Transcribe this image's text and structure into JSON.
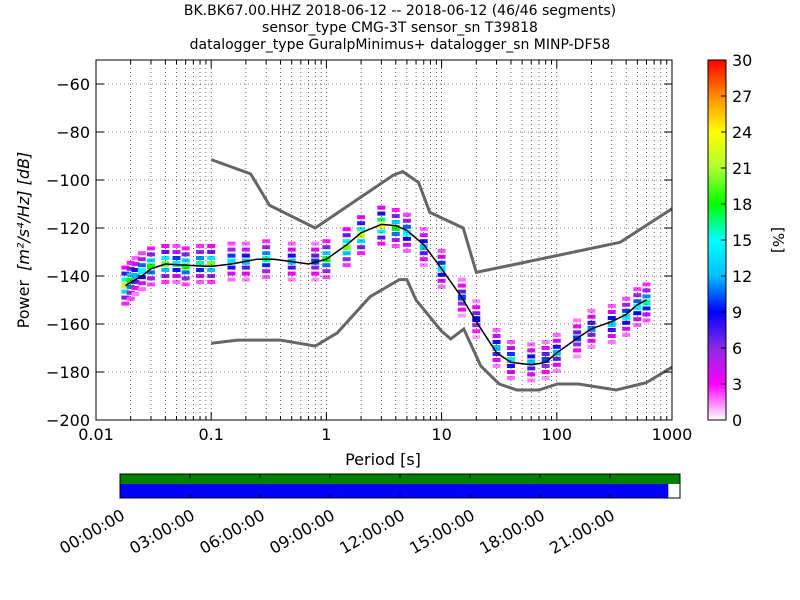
{
  "title_lines": [
    "BK.BK67.00.HHZ   2018-06-12 -- 2018-06-12  (46/46 segments)",
    "sensor_type CMG-3T sensor_sn T39818",
    "datalogger_type GuralpMinimus+ datalogger_sn MINP-DF58"
  ],
  "chart_data": [
    {
      "type": "heatmap",
      "title": "BK.BK67.00.HHZ   2018-06-12 -- 2018-06-12  (46/46 segments)",
      "xlabel": "Period [s]",
      "ylabel_main": "Power",
      "ylabel_units": "[m²/s⁴/Hz] [dB]",
      "xscale": "log",
      "xlim": [
        0.01,
        1000
      ],
      "ylim": [
        -200,
        -50
      ],
      "x_ticks": [
        0.01,
        0.1,
        1,
        10,
        100,
        1000
      ],
      "x_tick_labels": [
        "0.01",
        "0.1",
        "1",
        "10",
        "100",
        "1000"
      ],
      "y_ticks": [
        -200,
        -180,
        -160,
        -140,
        -120,
        -100,
        -80,
        -60
      ],
      "y_tick_labels": [
        "−200",
        "−180",
        "−160",
        "−140",
        "−120",
        "−100",
        "−80",
        "−60"
      ],
      "grid": true,
      "noise_model_high": {
        "x": [
          0.1,
          0.22,
          0.32,
          0.8,
          3.8,
          4.6,
          6.3,
          7.9,
          15.4,
          20,
          354,
          1000
        ],
        "y": [
          -91.5,
          -97.4,
          -110.5,
          -120,
          -98,
          -96.5,
          -101,
          -113.5,
          -120,
          -138.5,
          -126,
          -112
        ]
      },
      "noise_model_low": {
        "x": [
          0.1,
          0.17,
          0.4,
          0.8,
          1.24,
          2.4,
          4.3,
          5,
          6,
          10,
          12,
          15.6,
          21.9,
          31.6,
          45,
          70,
          101,
          154,
          328,
          600,
          1000
        ],
        "y": [
          -168,
          -166.7,
          -166.7,
          -169.2,
          -163.7,
          -148.6,
          -141.5,
          -141.5,
          -150,
          -163,
          -166.2,
          -162.1,
          -177.5,
          -185,
          -187.5,
          -187.5,
          -185,
          -185,
          -187.5,
          -184.4,
          -178
        ]
      },
      "mean_curve": {
        "x": [
          0.018,
          0.025,
          0.03,
          0.04,
          0.06,
          0.1,
          0.15,
          0.25,
          0.35,
          0.5,
          0.7,
          1,
          1.5,
          2,
          3,
          4,
          5,
          7,
          10,
          15,
          20,
          30,
          40,
          60,
          80,
          100,
          150,
          200,
          300,
          400,
          500,
          600
        ],
        "y": [
          -144,
          -140,
          -137,
          -135,
          -135.5,
          -136,
          -135,
          -133,
          -133,
          -134,
          -135,
          -133,
          -127,
          -122,
          -118.5,
          -119,
          -121,
          -127,
          -137,
          -149,
          -159,
          -172,
          -176,
          -177,
          -176,
          -172,
          -166,
          -162,
          -159,
          -156,
          -152,
          -150
        ]
      },
      "density_points": [
        [
          0.018,
          -144,
          22
        ],
        [
          0.02,
          -142,
          18
        ],
        [
          0.022,
          -140,
          12
        ],
        [
          0.025,
          -138,
          15
        ],
        [
          0.03,
          -136,
          18
        ],
        [
          0.04,
          -135,
          20
        ],
        [
          0.05,
          -135,
          14
        ],
        [
          0.06,
          -136,
          18
        ],
        [
          0.08,
          -135,
          16
        ],
        [
          0.1,
          -135,
          20
        ],
        [
          0.15,
          -134,
          14
        ],
        [
          0.2,
          -134,
          12
        ],
        [
          0.3,
          -133,
          16
        ],
        [
          0.5,
          -134,
          12
        ],
        [
          0.8,
          -134,
          10
        ],
        [
          1,
          -133,
          18
        ],
        [
          1.5,
          -128,
          20
        ],
        [
          2,
          -123,
          22
        ],
        [
          3,
          -119,
          24
        ],
        [
          4,
          -120,
          18
        ],
        [
          5,
          -122,
          15
        ],
        [
          7,
          -128,
          12
        ],
        [
          10,
          -137,
          14
        ],
        [
          15,
          -149,
          10
        ],
        [
          20,
          -158,
          9
        ],
        [
          30,
          -170,
          12
        ],
        [
          40,
          -175,
          14
        ],
        [
          60,
          -176,
          12
        ],
        [
          80,
          -175,
          10
        ],
        [
          100,
          -172,
          12
        ],
        [
          150,
          -166,
          10
        ],
        [
          200,
          -162,
          11
        ],
        [
          300,
          -160,
          13
        ],
        [
          400,
          -157,
          14
        ],
        [
          500,
          -153,
          15
        ],
        [
          600,
          -151,
          16
        ]
      ],
      "colorbar": {
        "label": "[%]",
        "min": 0,
        "max": 30,
        "ticks": [
          0,
          3,
          6,
          9,
          12,
          15,
          18,
          21,
          24,
          27,
          30
        ],
        "colormap": "pqlx"
      }
    },
    {
      "type": "timeline",
      "x_tick_labels": [
        "00:00:00",
        "03:00:00",
        "06:00:00",
        "09:00:00",
        "12:00:00",
        "15:00:00",
        "18:00:00",
        "21:00:00"
      ],
      "x_ticks_hours": [
        0,
        3,
        6,
        9,
        12,
        15,
        18,
        21
      ],
      "xlim_hours": [
        0,
        24
      ],
      "rows": [
        {
          "color": "#008000",
          "start_hour": 0,
          "end_hour": 24
        },
        {
          "color": "#0000ff",
          "start_hour": 0,
          "end_hour": 23.5
        }
      ]
    }
  ]
}
